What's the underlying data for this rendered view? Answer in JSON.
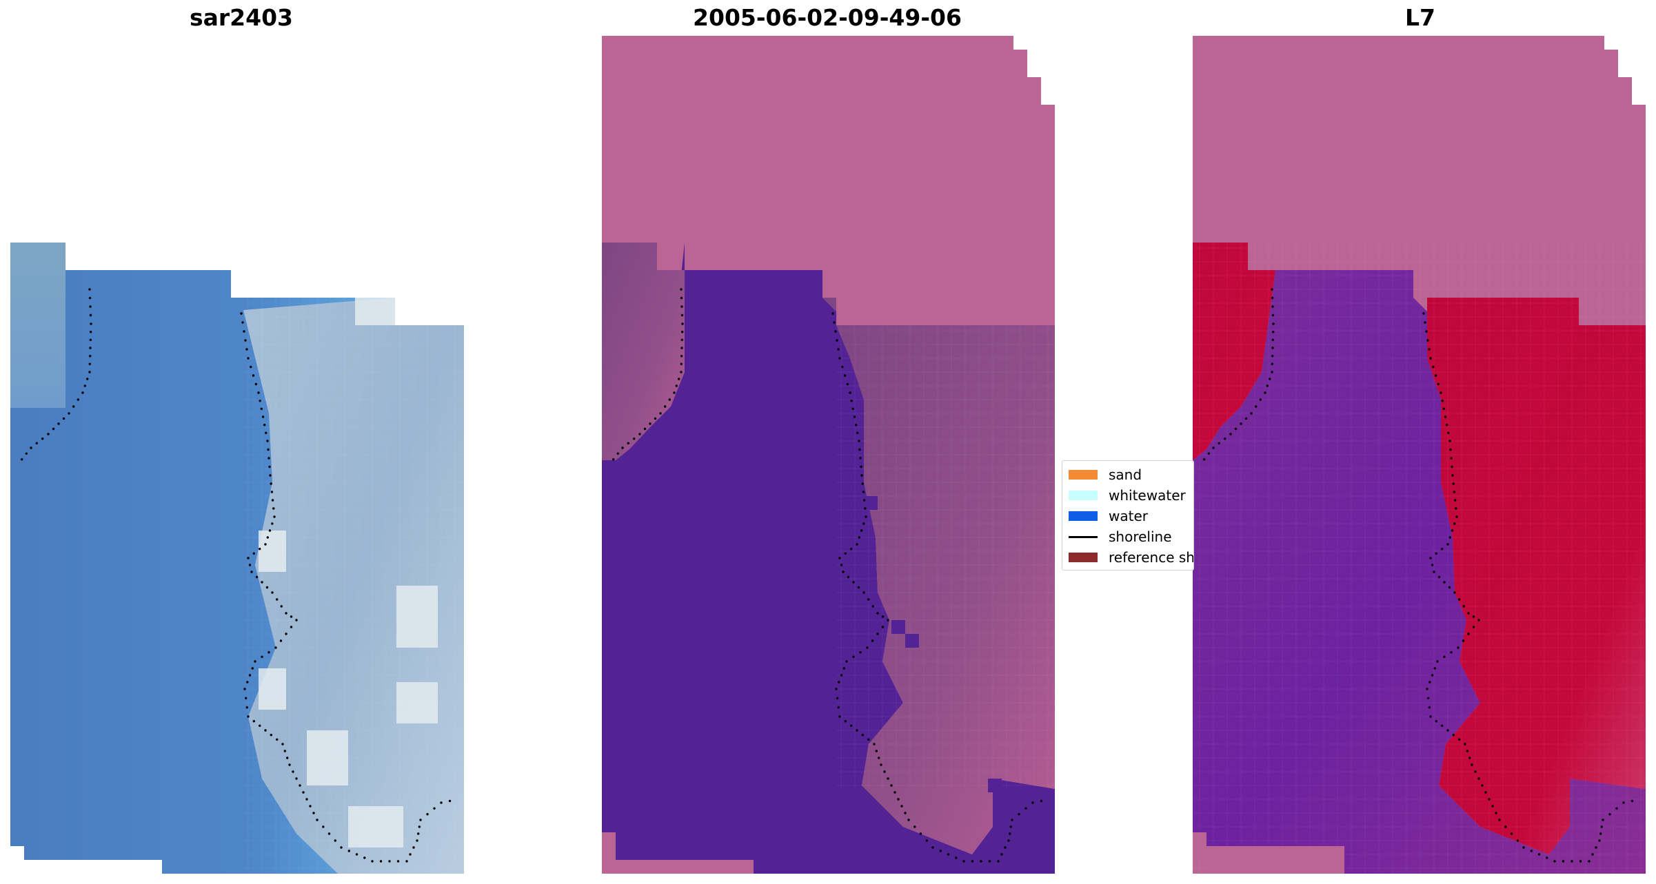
{
  "panels": [
    {
      "title": "sar2403",
      "type": "rgb-image"
    },
    {
      "title": "2005-06-02-09-49-06",
      "type": "classified-image"
    },
    {
      "title": "L7",
      "type": "mndwi-image"
    }
  ],
  "legend": {
    "items": [
      {
        "label": "sand",
        "color": "#f58a35",
        "kind": "patch"
      },
      {
        "label": "whitewater",
        "color": "#c6fffd",
        "kind": "patch"
      },
      {
        "label": "water",
        "color": "#0f5ee8",
        "kind": "patch"
      },
      {
        "label": "shoreline",
        "color": "#000000",
        "kind": "line"
      },
      {
        "label": "reference shoreline",
        "color": "#8b2b2b",
        "kind": "patch"
      }
    ]
  },
  "colors": {
    "background": "#ffffff",
    "rgb_water": "#4a7fc4",
    "rgb_water_shallow": "#5a9dd6",
    "rgb_land": "#9fb9d4",
    "rgb_foam": "#e6eef2",
    "class_nodata": "#bb6595",
    "class_water": "#532396",
    "class_land": "#8a4a82",
    "class_land_light": "#b45a92",
    "mndwi_water": "#7a2a9a",
    "mndwi_land": "#c30a3a",
    "shoreline_dots": "#000000"
  }
}
